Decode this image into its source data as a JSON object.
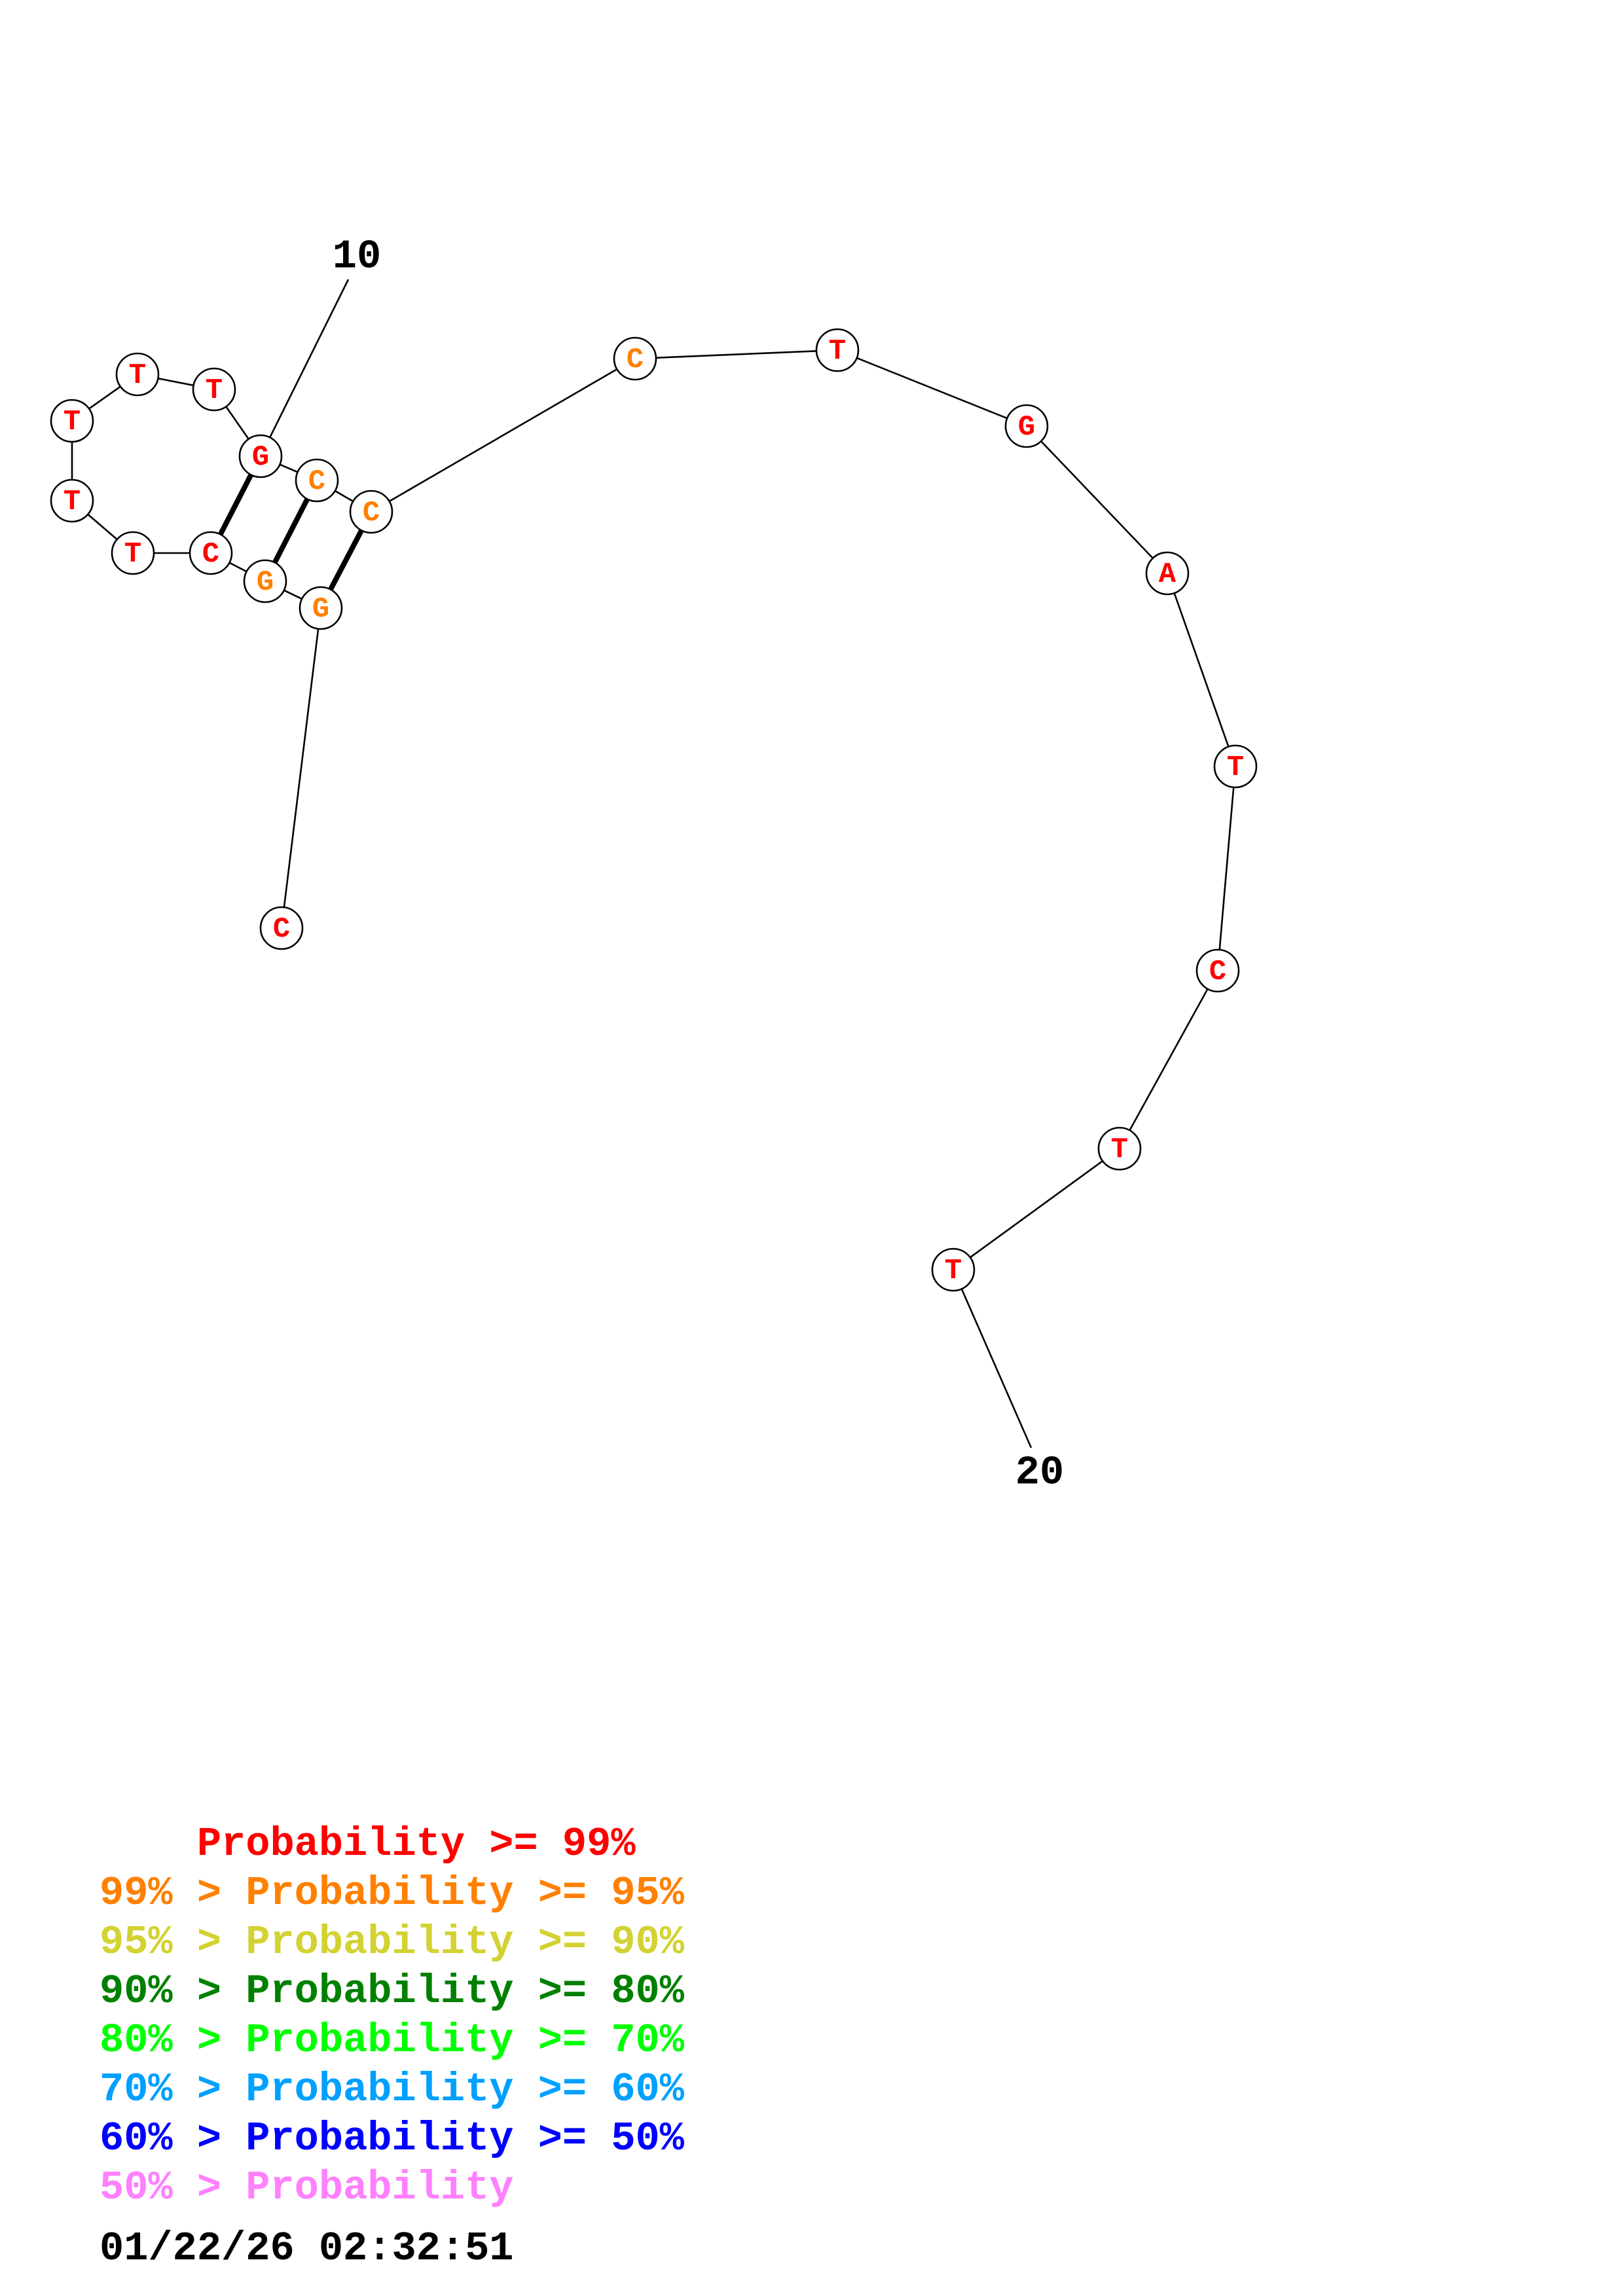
{
  "structure": {
    "nucleotides": [
      {
        "base": "C",
        "probability_class": ">=99"
      },
      {
        "base": "G",
        "probability_class": "99-95"
      },
      {
        "base": "G",
        "probability_class": "99-95"
      },
      {
        "base": "C",
        "probability_class": ">=99"
      },
      {
        "base": "T",
        "probability_class": ">=99"
      },
      {
        "base": "T",
        "probability_class": ">=99"
      },
      {
        "base": "T",
        "probability_class": ">=99"
      },
      {
        "base": "T",
        "probability_class": ">=99"
      },
      {
        "base": "T",
        "probability_class": ">=99"
      },
      {
        "base": "G",
        "probability_class": ">=99"
      },
      {
        "base": "C",
        "probability_class": "99-95"
      },
      {
        "base": "C",
        "probability_class": "99-95"
      },
      {
        "base": "C",
        "probability_class": "99-95"
      },
      {
        "base": "T",
        "probability_class": ">=99"
      },
      {
        "base": "G",
        "probability_class": ">=99"
      },
      {
        "base": "A",
        "probability_class": ">=99"
      },
      {
        "base": "T",
        "probability_class": ">=99"
      },
      {
        "base": "C",
        "probability_class": ">=99"
      },
      {
        "base": "T",
        "probability_class": ">=99"
      },
      {
        "base": "T",
        "probability_class": ">=99"
      }
    ],
    "base_pairs": [
      [
        2,
        12
      ],
      [
        3,
        11
      ],
      [
        4,
        10
      ]
    ],
    "index_labels": [
      {
        "position": 10,
        "text": "10"
      },
      {
        "position": 20,
        "text": "20"
      }
    ]
  },
  "colors": {
    ">=99": "#ff0000",
    "99-95": "#ff8000",
    "95-90": "#d2d232",
    "90-80": "#008000",
    "80-70": "#00ff00",
    "70-60": "#00a0ff",
    "60-50": "#0000ff",
    "<50": "#ff80ff"
  },
  "legend": [
    {
      "text": "    Probability >= 99%",
      "color": "#ff0000"
    },
    {
      "text": "99% > Probability >= 95%",
      "color": "#ff8000"
    },
    {
      "text": "95% > Probability >= 90%",
      "color": "#d2d232"
    },
    {
      "text": "90% > Probability >= 80%",
      "color": "#008000"
    },
    {
      "text": "80% > Probability >= 70%",
      "color": "#00ff00"
    },
    {
      "text": "70% > Probability >= 60%",
      "color": "#00a0ff"
    },
    {
      "text": "60% > Probability >= 50%",
      "color": "#0000ff"
    },
    {
      "text": "50% > Probability",
      "color": "#ff80ff"
    }
  ],
  "timestamp": "01/22/26 02:32:51"
}
